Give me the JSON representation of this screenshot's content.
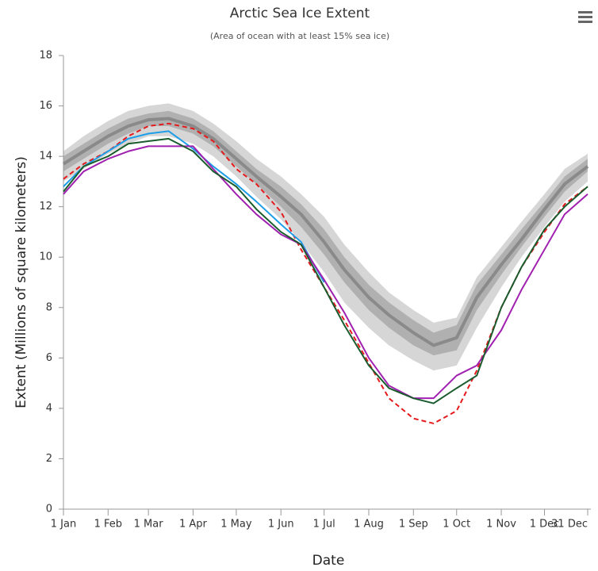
{
  "chart_data": {
    "type": "line",
    "title": "Arctic Sea Ice Extent",
    "subtitle": "(Area of ocean with at least 15% sea ice)",
    "x_label": "Date",
    "y_label": "Extent (Millions of square kilometers)",
    "x": [
      1,
      15,
      32,
      46,
      60,
      74,
      91,
      105,
      121,
      135,
      152,
      166,
      182,
      196,
      213,
      227,
      244,
      258,
      274,
      288,
      305,
      319,
      335,
      349,
      365
    ],
    "xlim": [
      1,
      365
    ],
    "xticks": [
      {
        "value": 1,
        "label": "1 Jan"
      },
      {
        "value": 32,
        "label": "1 Feb"
      },
      {
        "value": 60,
        "label": "1 Mar"
      },
      {
        "value": 91,
        "label": "1 Apr"
      },
      {
        "value": 121,
        "label": "1 May"
      },
      {
        "value": 152,
        "label": "1 Jun"
      },
      {
        "value": 182,
        "label": "1 Jul"
      },
      {
        "value": 213,
        "label": "1 Aug"
      },
      {
        "value": 244,
        "label": "1 Sep"
      },
      {
        "value": 274,
        "label": "1 Oct"
      },
      {
        "value": 305,
        "label": "1 Nov"
      },
      {
        "value": 335,
        "label": "1 Dec"
      },
      {
        "value": 365,
        "label": "31 Dec"
      }
    ],
    "ylim": [
      0,
      18
    ],
    "yticks": [
      0,
      2,
      4,
      6,
      8,
      10,
      12,
      14,
      16,
      18
    ],
    "grid": false,
    "bands": [
      {
        "color": "#d6d6d6",
        "lower": [
          13.0,
          13.5,
          14.1,
          14.5,
          14.8,
          14.8,
          14.5,
          14.0,
          13.2,
          12.4,
          11.5,
          10.6,
          9.4,
          8.2,
          7.2,
          6.5,
          5.9,
          5.5,
          5.7,
          7.2,
          8.8,
          10.0,
          11.2,
          12.2,
          13.0
        ],
        "upper": [
          14.2,
          14.8,
          15.4,
          15.8,
          16.0,
          16.1,
          15.8,
          15.3,
          14.6,
          13.9,
          13.2,
          12.5,
          11.6,
          10.5,
          9.4,
          8.6,
          7.9,
          7.4,
          7.6,
          9.2,
          10.4,
          11.4,
          12.5,
          13.5,
          14.1
        ]
      },
      {
        "color": "#b0b0b0",
        "lower": [
          13.4,
          13.9,
          14.5,
          14.9,
          15.2,
          15.2,
          14.9,
          14.4,
          13.6,
          12.9,
          12.0,
          11.2,
          10.1,
          9.0,
          7.9,
          7.2,
          6.5,
          6.1,
          6.3,
          7.9,
          9.3,
          10.4,
          11.6,
          12.6,
          13.4
        ],
        "upper": [
          14.0,
          14.5,
          15.1,
          15.5,
          15.7,
          15.8,
          15.5,
          15.0,
          14.2,
          13.5,
          12.8,
          12.1,
          11.1,
          10.0,
          8.9,
          8.2,
          7.5,
          7.0,
          7.3,
          8.9,
          10.1,
          11.1,
          12.2,
          13.2,
          13.9
        ]
      }
    ],
    "series": [
      {
        "color": "#8a8a8a",
        "width": 4,
        "dash": false,
        "values": [
          13.7,
          14.2,
          14.8,
          15.2,
          15.45,
          15.5,
          15.2,
          14.7,
          13.9,
          13.2,
          12.4,
          11.7,
          10.6,
          9.5,
          8.4,
          7.7,
          7.0,
          6.5,
          6.8,
          8.4,
          9.7,
          10.7,
          11.9,
          12.9,
          13.6
        ]
      },
      {
        "color": "#e41a1c",
        "width": 2,
        "dash": true,
        "values": [
          13.1,
          13.7,
          14.2,
          14.8,
          15.2,
          15.3,
          15.1,
          14.6,
          13.5,
          12.9,
          11.8,
          10.3,
          8.8,
          7.5,
          5.8,
          4.4,
          3.6,
          3.4,
          3.9,
          5.5,
          8.0,
          9.6,
          11.0,
          12.1,
          12.8
        ]
      },
      {
        "color": "#1f9ee8",
        "width": 2,
        "dash": false,
        "values": [
          12.8,
          13.6,
          14.2,
          14.7,
          14.9,
          15.0,
          14.3,
          13.6,
          12.9,
          12.2,
          11.3,
          10.6,
          9.0,
          null,
          null,
          null,
          null,
          null,
          null,
          null,
          null,
          null,
          null,
          null,
          null
        ]
      },
      {
        "color": "#a020b0",
        "width": 2,
        "dash": false,
        "values": [
          12.5,
          13.4,
          13.9,
          14.2,
          14.4,
          14.4,
          14.4,
          13.5,
          12.5,
          11.7,
          10.9,
          10.5,
          9.1,
          7.8,
          6.0,
          4.9,
          4.4,
          4.4,
          5.3,
          5.7,
          7.1,
          8.7,
          10.3,
          11.7,
          12.5
        ]
      },
      {
        "color": "#1a5c2e",
        "width": 2,
        "dash": false,
        "values": [
          12.6,
          13.6,
          14.0,
          14.5,
          14.6,
          14.7,
          14.2,
          13.4,
          12.8,
          11.9,
          11.0,
          10.5,
          8.8,
          7.3,
          5.7,
          4.8,
          4.4,
          4.2,
          4.8,
          5.3,
          8.0,
          9.6,
          11.1,
          12.0,
          12.8
        ]
      }
    ]
  }
}
